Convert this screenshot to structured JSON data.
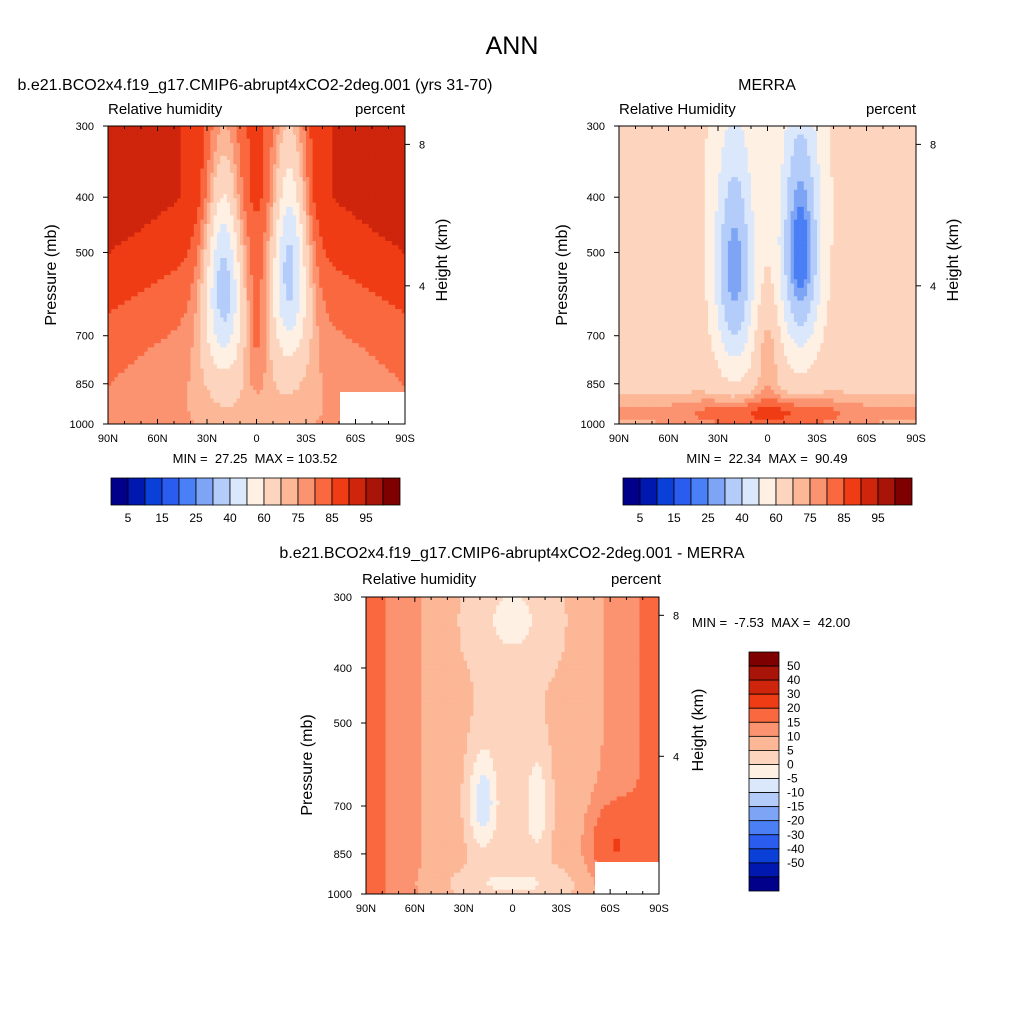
{
  "page_title": "ANN",
  "colors": {
    "rh_levels": [
      "#00008b",
      "#0018b0",
      "#0a3fd8",
      "#2a5cf0",
      "#4a7ff5",
      "#7ea4f5",
      "#b3ccfa",
      "#dbe8fc",
      "#fff0e4",
      "#fdd5bf",
      "#fcb797",
      "#fb9370",
      "#f9683f",
      "#f03c14",
      "#cf250c",
      "#a81408",
      "#7e0000"
    ],
    "diff_levels": [
      "#7e0000",
      "#a81408",
      "#cf250c",
      "#f03c14",
      "#f9683f",
      "#fb9370",
      "#fcb797",
      "#fdd5bf",
      "#fff0e4",
      "#dbe8fc",
      "#b3ccfa",
      "#7ea4f5",
      "#4a7ff5",
      "#2a5cf0",
      "#0a3fd8",
      "#0018b0",
      "#00008b"
    ]
  },
  "chart_data": [
    {
      "type": "heatmap",
      "title": "b.e21.BCO2x4.f19_g17.CMIP6-abrupt4xCO2-2deg.001 (yrs 31-70)",
      "left_subtitle": "Relative humidity",
      "right_subtitle": "percent",
      "ylabel": "Pressure (mb)",
      "y2label": "Height (km)",
      "x_ticks": [
        "90N",
        "60N",
        "30N",
        "0",
        "30S",
        "60S",
        "90S"
      ],
      "y_ticks": [
        "300",
        "400",
        "500",
        "700",
        "850",
        "1000"
      ],
      "y2_ticks": [
        "8",
        "4"
      ],
      "x_range": [
        90,
        -90
      ],
      "y_range_mb": [
        300,
        1000
      ],
      "y_scale": "log",
      "stats": "MIN =  27.25  MAX = 103.52",
      "colorbar_labels": [
        "5",
        "15",
        "25",
        "40",
        "60",
        "75",
        "85",
        "95"
      ]
    },
    {
      "type": "heatmap",
      "title": "MERRA",
      "left_subtitle": "Relative Humidity",
      "right_subtitle": "percent",
      "ylabel": "Pressure (mb)",
      "y2label": "Height (km)",
      "x_ticks": [
        "90N",
        "60N",
        "30N",
        "0",
        "30S",
        "60S",
        "90S"
      ],
      "y_ticks": [
        "300",
        "400",
        "500",
        "700",
        "850",
        "1000"
      ],
      "y2_ticks": [
        "8",
        "4"
      ],
      "x_range": [
        90,
        -90
      ],
      "y_range_mb": [
        300,
        1000
      ],
      "y_scale": "log",
      "stats": "MIN =  22.34  MAX =  90.49",
      "colorbar_labels": [
        "5",
        "15",
        "25",
        "40",
        "60",
        "75",
        "85",
        "95"
      ]
    },
    {
      "type": "heatmap",
      "title": "b.e21.BCO2x4.f19_g17.CMIP6-abrupt4xCO2-2deg.001 - MERRA",
      "left_subtitle": "Relative humidity",
      "right_subtitle": "percent",
      "ylabel": "Pressure (mb)",
      "y2label": "Height (km)",
      "x_ticks": [
        "90N",
        "60N",
        "30N",
        "0",
        "30S",
        "60S",
        "90S"
      ],
      "y_ticks": [
        "300",
        "400",
        "500",
        "700",
        "850",
        "1000"
      ],
      "y2_ticks": [
        "8",
        "4"
      ],
      "x_range": [
        90,
        -90
      ],
      "y_range_mb": [
        300,
        1000
      ],
      "y_scale": "log",
      "stats": "MIN =  -7.53  MAX =  42.00",
      "colorbar_labels": [
        "50",
        "40",
        "30",
        "20",
        "15",
        "10",
        "5",
        "0",
        "-5",
        "-10",
        "-15",
        "-20",
        "-30",
        "-40",
        "-50"
      ]
    }
  ]
}
